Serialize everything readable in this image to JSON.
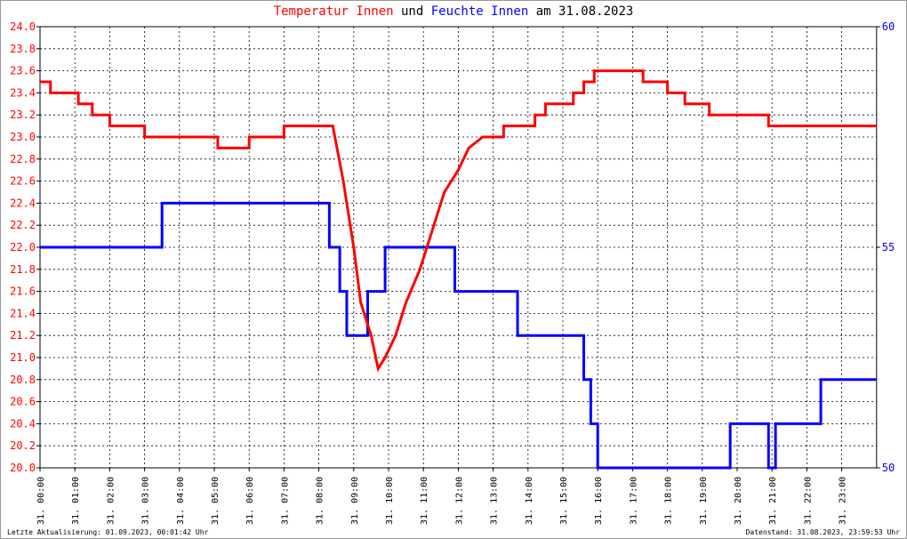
{
  "chart_data": {
    "type": "line",
    "title_parts": [
      {
        "text": "Temperatur Innen",
        "color": "#ff0000"
      },
      {
        "text": "und",
        "color": "#000000"
      },
      {
        "text": "Feuchte Innen",
        "color": "#0000ff"
      },
      {
        "text": "am 31.08.2023",
        "color": "#000000"
      }
    ],
    "footer_left": "Letzte Aktualisierung: 01.09.2023, 00:01:42 Uhr",
    "footer_right": "Datenstand: 31.08.2023, 23:59:53 Uhr",
    "xlim": [
      0,
      24
    ],
    "xticks": [
      {
        "value": 0,
        "label": "31. 00:00"
      },
      {
        "value": 1,
        "label": "31. 01:00"
      },
      {
        "value": 2,
        "label": "31. 02:00"
      },
      {
        "value": 3,
        "label": "31. 03:00"
      },
      {
        "value": 4,
        "label": "31. 04:00"
      },
      {
        "value": 5,
        "label": "31. 05:00"
      },
      {
        "value": 6,
        "label": "31. 06:00"
      },
      {
        "value": 7,
        "label": "31. 07:00"
      },
      {
        "value": 8,
        "label": "31. 08:00"
      },
      {
        "value": 9,
        "label": "31. 09:00"
      },
      {
        "value": 10,
        "label": "31. 10:00"
      },
      {
        "value": 11,
        "label": "31. 11:00"
      },
      {
        "value": 12,
        "label": "31. 12:00"
      },
      {
        "value": 13,
        "label": "31. 13:00"
      },
      {
        "value": 14,
        "label": "31. 14:00"
      },
      {
        "value": 15,
        "label": "31. 15:00"
      },
      {
        "value": 16,
        "label": "31. 16:00"
      },
      {
        "value": 17,
        "label": "31. 17:00"
      },
      {
        "value": 18,
        "label": "31. 18:00"
      },
      {
        "value": 19,
        "label": "31. 19:00"
      },
      {
        "value": 20,
        "label": "31. 20:00"
      },
      {
        "value": 21,
        "label": "31. 21:00"
      },
      {
        "value": 22,
        "label": "31. 22:00"
      },
      {
        "value": 23,
        "label": "31. 23:00"
      }
    ],
    "ylim": [
      20,
      24
    ],
    "yticks": [
      {
        "value": 20,
        "label": "20.0"
      },
      20.2,
      20.4,
      20.6,
      20.8,
      {
        "value": 21,
        "label": "21.0"
      },
      21.2,
      21.4,
      21.6,
      21.8,
      {
        "value": 22,
        "label": "22.0"
      },
      22.2,
      22.4,
      22.6,
      22.8,
      {
        "value": 23,
        "label": "23.0"
      },
      23.2,
      23.4,
      23.6,
      23.8,
      {
        "value": 24,
        "label": "24.0"
      }
    ],
    "y_color": "#ff0000",
    "y2lim": [
      50,
      60
    ],
    "y2ticks": [
      50,
      55,
      60
    ],
    "y2_color": "#0000ff",
    "grid": true,
    "series": [
      {
        "name": "Temperatur Innen",
        "color": "#ff0000",
        "x": [
          0,
          0.3,
          0.3,
          1.1,
          1.1,
          1.5,
          1.5,
          2.0,
          2.0,
          3.0,
          3.0,
          5.1,
          5.1,
          6.0,
          6.0,
          7.0,
          7.0,
          8.4,
          8.7,
          9.0,
          9.2,
          9.5,
          9.7,
          9.9,
          10.2,
          10.5,
          10.9,
          11.2,
          11.6,
          12.0,
          12.3,
          12.7,
          12.7,
          13.3,
          13.3,
          14.2,
          14.2,
          14.5,
          14.5,
          15.3,
          15.3,
          15.6,
          15.6,
          15.9,
          15.9,
          17.3,
          17.3,
          18.0,
          18.0,
          18.5,
          18.5,
          19.2,
          19.2,
          20.9,
          20.9,
          24
        ],
        "values": [
          23.5,
          23.5,
          23.4,
          23.4,
          23.3,
          23.3,
          23.2,
          23.2,
          23.1,
          23.1,
          23.0,
          23.0,
          22.9,
          22.9,
          23.0,
          23.0,
          23.1,
          23.1,
          22.6,
          22.0,
          21.5,
          21.2,
          20.9,
          21.0,
          21.2,
          21.5,
          21.8,
          22.1,
          22.5,
          22.7,
          22.9,
          23.0,
          23.0,
          23.0,
          23.1,
          23.1,
          23.2,
          23.2,
          23.3,
          23.3,
          23.4,
          23.4,
          23.5,
          23.5,
          23.6,
          23.6,
          23.5,
          23.5,
          23.4,
          23.4,
          23.3,
          23.3,
          23.2,
          23.2,
          23.1,
          23.1
        ]
      },
      {
        "name": "Feuchte Innen",
        "color": "#0000ff",
        "axis": "y2",
        "x": [
          0,
          3.5,
          3.5,
          8.3,
          8.3,
          8.6,
          8.6,
          8.8,
          8.8,
          9.4,
          9.4,
          9.9,
          9.9,
          11.9,
          11.9,
          13.7,
          13.7,
          15.6,
          15.6,
          15.8,
          15.8,
          16.0,
          16.0,
          19.8,
          19.8,
          20.9,
          20.9,
          21.1,
          21.1,
          22.4,
          22.4,
          24
        ],
        "values": [
          55,
          55,
          56,
          56,
          55,
          55,
          54,
          54,
          53,
          53,
          54,
          54,
          55,
          55,
          54,
          54,
          53,
          53,
          52,
          52,
          51,
          51,
          50,
          50,
          51,
          51,
          50,
          50,
          51,
          51,
          52,
          52
        ]
      }
    ]
  }
}
